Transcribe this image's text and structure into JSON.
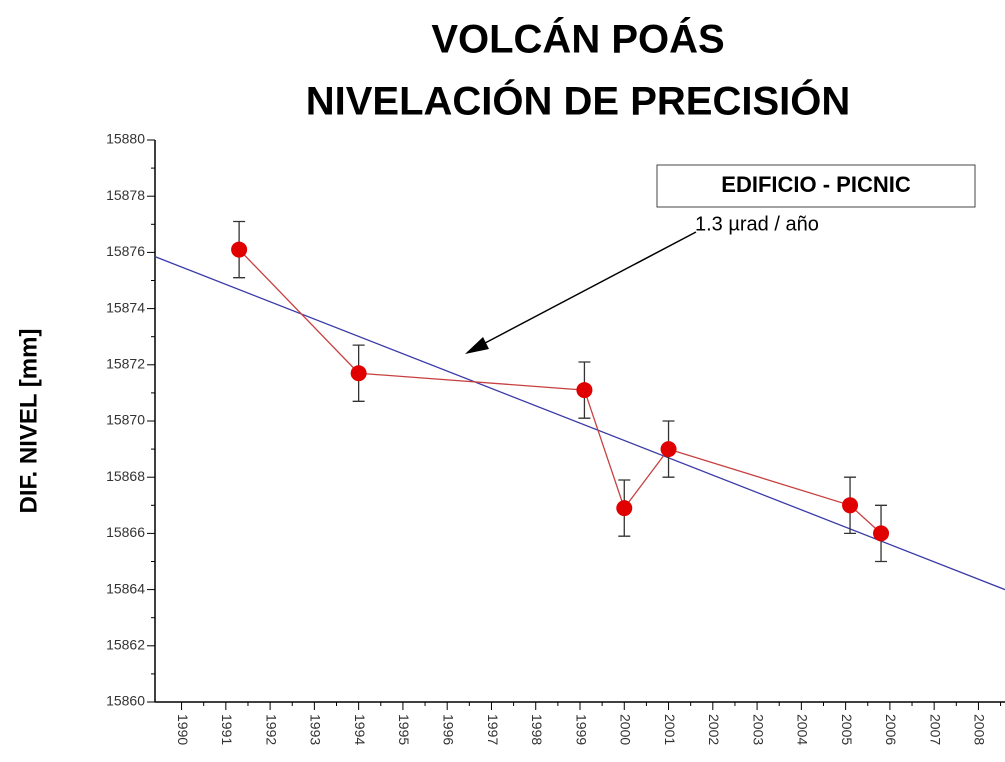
{
  "chart_data": {
    "type": "line",
    "title": [
      "VOLCÁN POÁS",
      "NIVELACIÓN DE PRECISIÓN"
    ],
    "y_label": "DIF. NIVEL [mm]",
    "annotation": "1.3 µrad / año",
    "series": [
      {
        "name": "EDIFICIO - PICNIC",
        "color": "#e00000",
        "line_color": "#c84040",
        "x": [
          1991.3,
          1994.0,
          1999.1,
          2000.0,
          2001.0,
          2005.1,
          2005.8
        ],
        "values": [
          15876.1,
          15871.7,
          15871.1,
          15866.9,
          15869.0,
          15867.0,
          15866.0
        ],
        "errors": [
          1,
          1,
          1,
          1,
          1,
          1,
          1
        ]
      }
    ],
    "trend_line": {
      "color": "#3a3aa8",
      "x": [
        1989.4,
        2008.6
      ],
      "values": [
        15875.85,
        15864.0
      ]
    },
    "xlim": [
      1989.4,
      2008.6
    ],
    "xticks": [
      1990,
      1991,
      1992,
      1993,
      1994,
      1995,
      1996,
      1997,
      1998,
      1999,
      2000,
      2001,
      2002,
      2003,
      2004,
      2005,
      2006,
      2007,
      2008
    ],
    "ylim": [
      15860,
      15880
    ],
    "yticks": [
      15860,
      15862,
      15864,
      15866,
      15868,
      15870,
      15872,
      15874,
      15876,
      15878,
      15880
    ],
    "legend": "upper right",
    "grid": false
  }
}
